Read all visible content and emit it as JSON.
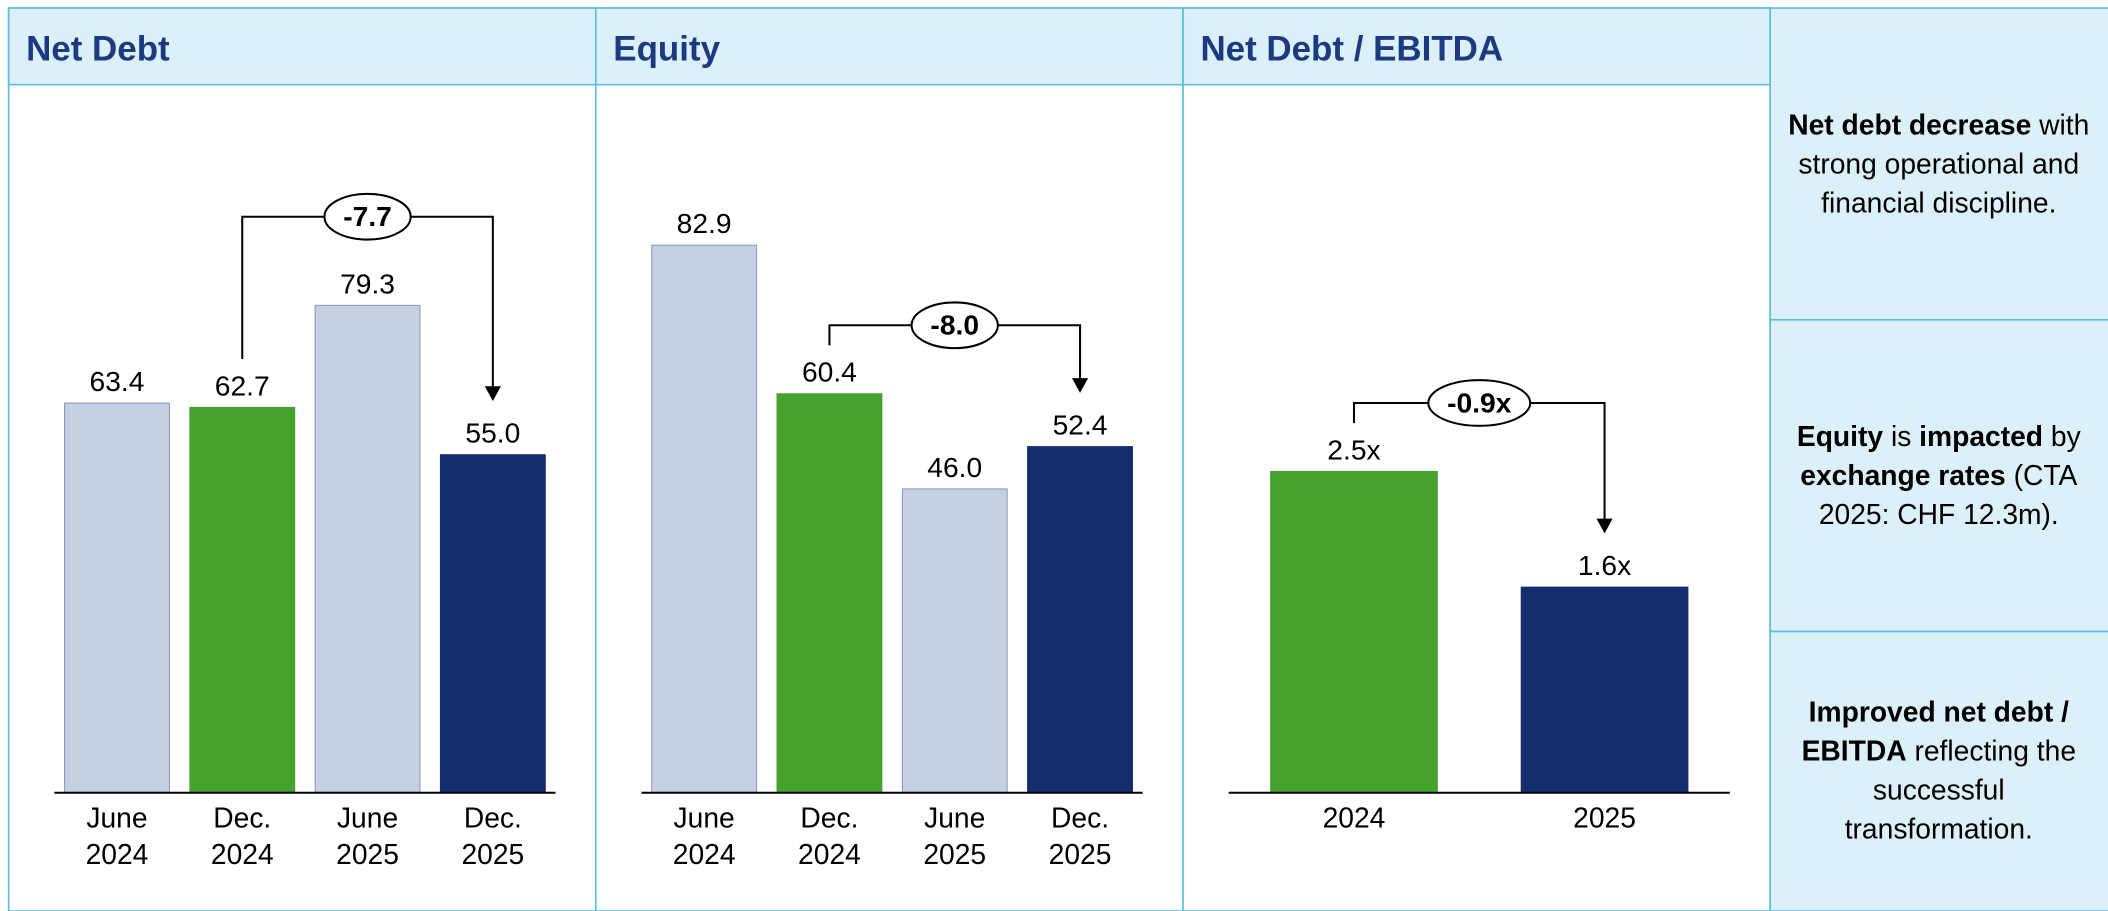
{
  "chart_data": [
    {
      "type": "bar",
      "title": "Net Debt",
      "categories": [
        "June 2024",
        "Dec. 2024",
        "June 2025",
        "Dec. 2025"
      ],
      "values": [
        63.4,
        62.7,
        79.3,
        55.0
      ],
      "value_labels": [
        "63.4",
        "62.7",
        "79.3",
        "55.0"
      ],
      "colors": [
        "#c5d0e2",
        "#46a22e",
        "#c5d0e2",
        "#142d6e"
      ],
      "ylim": [
        0,
        115
      ],
      "annotation": {
        "text": "-7.7",
        "from": "Dec. 2024",
        "to": "Dec. 2025"
      }
    },
    {
      "type": "bar",
      "title": "Equity",
      "categories": [
        "June 2024",
        "Dec. 2024",
        "June 2025",
        "Dec. 2025"
      ],
      "values": [
        82.9,
        60.4,
        46.0,
        52.4
      ],
      "value_labels": [
        "82.9",
        "60.4",
        "46.0",
        "52.4"
      ],
      "colors": [
        "#c5d0e2",
        "#46a22e",
        "#c5d0e2",
        "#142d6e"
      ],
      "ylim": [
        0,
        107
      ],
      "annotation": {
        "text": "-8.0",
        "from": "Dec. 2024",
        "to": "Dec. 2025"
      }
    },
    {
      "type": "bar",
      "title": "Net Debt / EBITDA",
      "categories": [
        "2024",
        "2025"
      ],
      "values": [
        2.5,
        1.6
      ],
      "value_labels": [
        "2.5x",
        "1.6x"
      ],
      "colors": [
        "#46a22e",
        "#142d6e"
      ],
      "ylim": [
        0,
        5.5
      ],
      "annotation": {
        "text": "-0.9x",
        "from": "2024",
        "to": "2025"
      }
    }
  ],
  "notes": [
    [
      {
        "text": "Net debt decrease",
        "bold": true
      },
      {
        "text": " with strong operational and financial discipline.",
        "bold": false
      }
    ],
    [
      {
        "text": "Equity",
        "bold": true
      },
      {
        "text": " is ",
        "bold": false
      },
      {
        "text": "impacted",
        "bold": true
      },
      {
        "text": " by ",
        "bold": false
      },
      {
        "text": "exchange rates",
        "bold": true
      },
      {
        "text": " (CTA 2025: CHF 12.3m).",
        "bold": false
      }
    ],
    [
      {
        "text": "Improved net debt / EBITDA",
        "bold": true
      },
      {
        "text": " reflecting the successful transformation.",
        "bold": false
      }
    ]
  ]
}
